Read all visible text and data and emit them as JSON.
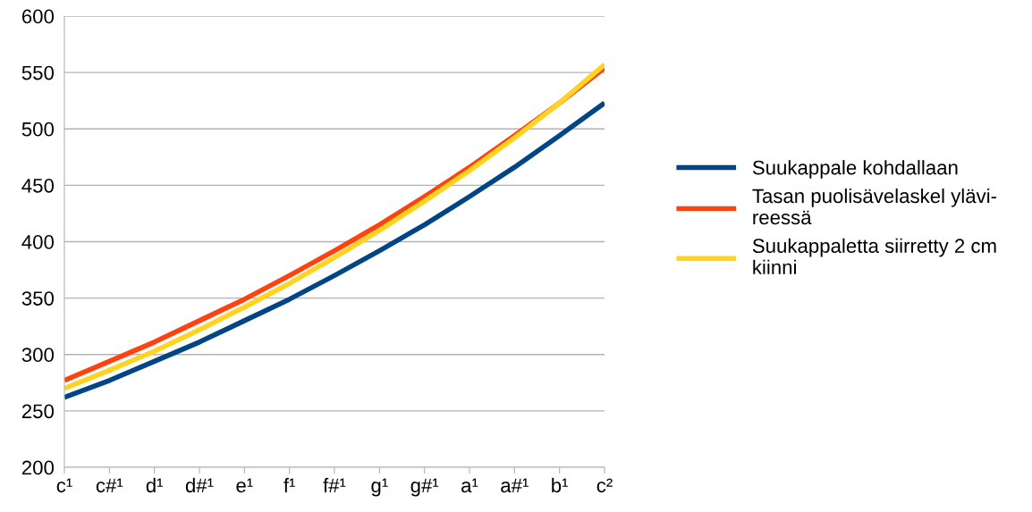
{
  "chart_data": {
    "type": "line",
    "categories": [
      "c¹",
      "c#¹",
      "d¹",
      "d#¹",
      "e¹",
      "f¹",
      "f#¹",
      "g¹",
      "g#¹",
      "a¹",
      "a#¹",
      "b¹",
      "c²"
    ],
    "series": [
      {
        "name": "Suukappale kohdallaan",
        "color": "#004586",
        "values": [
          262,
          277,
          294,
          311,
          330,
          349,
          370,
          392,
          415,
          440,
          466,
          494,
          523
        ]
      },
      {
        "name": "Tasan puolisävelaskel ylävi-\nreessä",
        "color": "#ff420e",
        "values": [
          277,
          294,
          311,
          330,
          349,
          370,
          392,
          415,
          440,
          466,
          494,
          523,
          554
        ]
      },
      {
        "name": "Suukappaletta siirretty 2 cm\nkiinni",
        "color": "#ffd320",
        "values": [
          270,
          286,
          303,
          322,
          342,
          363,
          386,
          410,
          436,
          463,
          492,
          523,
          557
        ]
      }
    ],
    "ylim": [
      200,
      600
    ],
    "yticks": [
      200,
      250,
      300,
      350,
      400,
      450,
      500,
      550,
      600
    ],
    "grid": "y",
    "legend": "right",
    "marker": "none",
    "line_style": "solid"
  }
}
